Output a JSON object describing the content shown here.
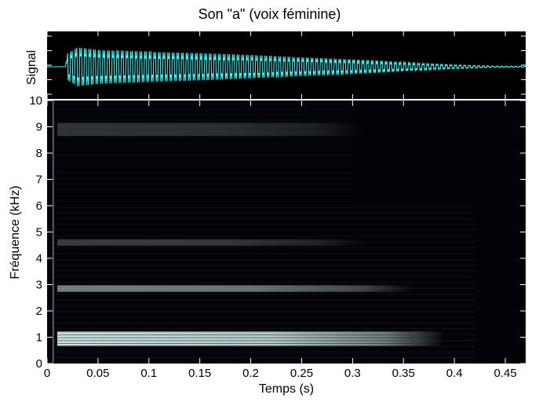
{
  "chart_data": {
    "type": "heatmap",
    "title": "Son \"a\" (voix féminine)",
    "signal_panel": {
      "ylabel": "Signal",
      "color": "#33ffff",
      "background": "#000000",
      "envelope": [
        {
          "t": 0.0,
          "a": 0.0
        },
        {
          "t": 0.018,
          "a": 0.0
        },
        {
          "t": 0.02,
          "a": 0.55
        },
        {
          "t": 0.03,
          "a": 0.8
        },
        {
          "t": 0.05,
          "a": 0.7
        },
        {
          "t": 0.1,
          "a": 0.62
        },
        {
          "t": 0.15,
          "a": 0.56
        },
        {
          "t": 0.2,
          "a": 0.48
        },
        {
          "t": 0.25,
          "a": 0.38
        },
        {
          "t": 0.3,
          "a": 0.3
        },
        {
          "t": 0.33,
          "a": 0.24
        },
        {
          "t": 0.36,
          "a": 0.16
        },
        {
          "t": 0.4,
          "a": 0.08
        },
        {
          "t": 0.44,
          "a": 0.03
        },
        {
          "t": 0.47,
          "a": 0.02
        }
      ],
      "f0_hz": 220
    },
    "spectrogram_panel": {
      "xlabel": "Temps (s)",
      "ylabel": "Fréquence (kHz)",
      "xlim": [
        0,
        0.47
      ],
      "ylim": [
        0,
        10
      ],
      "xticks": [
        "0",
        "0.05",
        "0.1",
        "0.15",
        "0.2",
        "0.25",
        "0.3",
        "0.35",
        "0.4",
        "0.45"
      ],
      "xtick_values": [
        0,
        0.05,
        0.1,
        0.15,
        0.2,
        0.25,
        0.3,
        0.35,
        0.4,
        0.45
      ],
      "yticks": [
        "0",
        "1",
        "2",
        "3",
        "4",
        "5",
        "6",
        "7",
        "8",
        "9",
        "10"
      ],
      "ytick_values": [
        0,
        1,
        2,
        3,
        4,
        5,
        6,
        7,
        8,
        9,
        10
      ],
      "colormap": "bone",
      "formant_bands_khz": [
        {
          "freq": 0.95,
          "width": 0.55,
          "strength": 1.0,
          "t_end": 0.33
        },
        {
          "freq": 2.85,
          "width": 0.25,
          "strength": 0.55,
          "t_end": 0.3
        },
        {
          "freq": 4.6,
          "width": 0.25,
          "strength": 0.25,
          "t_end": 0.25
        },
        {
          "freq": 8.9,
          "width": 0.5,
          "strength": 0.22,
          "t_end": 0.25
        }
      ],
      "onset_line_t": 0.006
    }
  }
}
